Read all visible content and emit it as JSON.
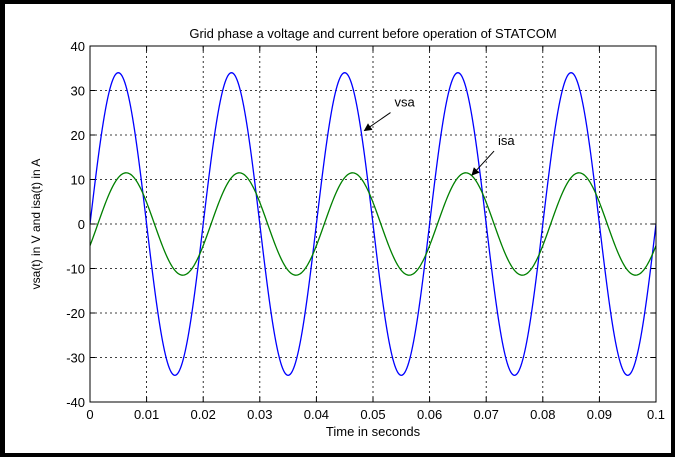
{
  "chart_data": {
    "type": "line",
    "title": "Grid phase a voltage and current before operation of STATCOM",
    "xlabel": "Time in seconds",
    "ylabel": "vsa(t) in V and isa(t) in A",
    "xlim": [
      0,
      0.1
    ],
    "ylim": [
      -40,
      40
    ],
    "xticks": [
      0,
      0.01,
      0.02,
      0.03,
      0.04,
      0.05,
      0.06,
      0.07,
      0.08,
      0.09,
      0.1
    ],
    "xtick_labels": [
      "0",
      "0.01",
      "0.02",
      "0.03",
      "0.04",
      "0.05",
      "0.06",
      "0.07",
      "0.08",
      "0.09",
      "0.1"
    ],
    "yticks": [
      -40,
      -30,
      -20,
      -10,
      0,
      10,
      20,
      30,
      40
    ],
    "ytick_labels": [
      "-40",
      "-30",
      "-20",
      "-10",
      "0",
      "10",
      "20",
      "30",
      "40"
    ],
    "grid": true,
    "series": [
      {
        "name": "vsa",
        "color": "#0000ff",
        "waveform": "sine",
        "amplitude": 34,
        "frequency_hz": 50,
        "phase_deg": 0
      },
      {
        "name": "isa",
        "color": "#008000",
        "waveform": "sine",
        "amplitude": 11.5,
        "frequency_hz": 50,
        "phase_deg": -25
      }
    ],
    "annotations": [
      {
        "text": "vsa",
        "series": "vsa",
        "points_to_x": 0.0485,
        "points_to_y": 21
      },
      {
        "text": "isa",
        "series": "isa",
        "points_to_x": 0.0675,
        "points_to_y": 11
      }
    ]
  }
}
